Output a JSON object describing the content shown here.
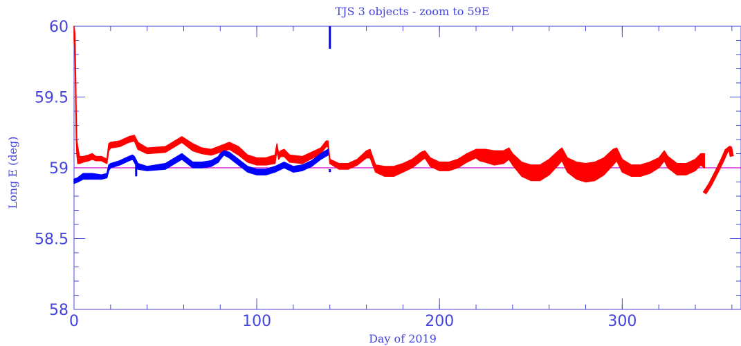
{
  "chart_data": {
    "type": "line",
    "title": "TJS 3 objects - zoom to 59E",
    "xlabel": "Day of 2019",
    "ylabel": "Long E (deg)",
    "xlim": [
      0,
      365
    ],
    "ylim": [
      58,
      60
    ],
    "x_ticks": [
      0,
      100,
      200,
      300
    ],
    "x_tick_labels": [
      "0",
      "100",
      "200",
      "300"
    ],
    "y_ticks": [
      58,
      58.5,
      59,
      59.5,
      60
    ],
    "y_tick_labels": [
      "58",
      "58.5",
      "59",
      "59.5",
      "60"
    ],
    "reference_line": {
      "y": 59.0,
      "color": "#d400d4"
    },
    "colors": {
      "axes": "#4444dd",
      "text": "#4444dd",
      "red_series": "#ff0000",
      "blue_series": "#0000ff"
    },
    "series": [
      {
        "color": "#ff0000",
        "style": "band",
        "x": [
          0,
          0.5,
          1,
          1.2,
          1.5,
          2,
          3,
          5,
          8,
          10,
          12,
          15,
          18,
          19,
          20,
          25,
          30,
          33,
          35,
          40,
          50,
          59,
          65,
          70,
          75,
          85,
          90,
          95,
          100,
          105,
          110,
          111,
          112,
          113,
          115,
          118,
          125,
          135,
          138,
          139,
          140,
          145,
          150,
          155,
          160,
          162,
          165,
          170,
          175,
          180,
          185,
          190,
          192,
          195,
          200,
          205,
          210,
          215,
          220,
          222,
          225,
          230,
          235,
          238,
          240,
          245,
          250,
          255,
          260,
          265,
          267,
          270,
          275,
          280,
          285,
          290,
          295,
          297,
          300,
          305,
          310,
          315,
          320,
          323,
          325,
          330,
          335,
          340,
          343,
          345
        ],
        "upper": [
          60.0,
          59.95,
          59.6,
          59.4,
          59.2,
          59.15,
          59.08,
          59.08,
          59.09,
          59.1,
          59.08,
          59.08,
          59.06,
          59.17,
          59.18,
          59.19,
          59.22,
          59.23,
          59.18,
          59.14,
          59.15,
          59.22,
          59.17,
          59.14,
          59.13,
          59.18,
          59.15,
          59.09,
          59.07,
          59.07,
          59.09,
          59.17,
          59.1,
          59.12,
          59.13,
          59.09,
          59.08,
          59.14,
          59.19,
          59.19,
          59.06,
          59.03,
          59.03,
          59.06,
          59.12,
          59.13,
          59.02,
          59.01,
          59.01,
          59.03,
          59.06,
          59.11,
          59.12,
          59.07,
          59.04,
          59.04,
          59.06,
          59.1,
          59.13,
          59.13,
          59.13,
          59.12,
          59.12,
          59.14,
          59.1,
          59.04,
          59.02,
          59.02,
          59.06,
          59.12,
          59.14,
          59.07,
          59.04,
          59.03,
          59.04,
          59.07,
          59.13,
          59.14,
          59.06,
          59.02,
          59.02,
          59.04,
          59.07,
          59.12,
          59.08,
          59.03,
          59.03,
          59.06,
          59.1,
          59.1
        ],
        "lower": [
          59.9,
          59.8,
          59.4,
          59.2,
          59.1,
          59.03,
          59.03,
          59.04,
          59.05,
          59.06,
          59.05,
          59.05,
          59.03,
          59.12,
          59.14,
          59.15,
          59.18,
          59.19,
          59.13,
          59.1,
          59.11,
          59.18,
          59.12,
          59.1,
          59.09,
          59.13,
          59.09,
          59.04,
          59.02,
          59.02,
          59.03,
          59.12,
          59.06,
          59.08,
          59.08,
          59.04,
          59.03,
          59.1,
          59.15,
          59.15,
          59.03,
          58.99,
          58.99,
          59.02,
          59.07,
          59.07,
          58.97,
          58.94,
          58.94,
          58.97,
          59.0,
          59.05,
          59.07,
          59.01,
          58.98,
          58.98,
          59.0,
          59.04,
          59.07,
          59.05,
          59.04,
          59.02,
          59.03,
          59.06,
          59.02,
          58.94,
          58.91,
          58.91,
          58.95,
          59.02,
          59.05,
          58.97,
          58.92,
          58.9,
          58.91,
          58.95,
          59.02,
          59.05,
          58.97,
          58.94,
          58.94,
          58.96,
          59.0,
          59.05,
          59.0,
          58.95,
          58.95,
          58.98,
          59.02,
          59.0
        ]
      },
      {
        "color": "#ff0000",
        "style": "line",
        "x": [
          345,
          348,
          352,
          355,
          357,
          359,
          360
        ],
        "y": [
          58.82,
          58.88,
          58.98,
          59.06,
          59.12,
          59.14,
          59.08
        ]
      },
      {
        "color": "#0000ff",
        "style": "band",
        "x": [
          0,
          2,
          5,
          10,
          15,
          18,
          19,
          20,
          25,
          30,
          32,
          33,
          35,
          40,
          50,
          59,
          65,
          70,
          75,
          79,
          80,
          82,
          85,
          90,
          95,
          100,
          105,
          110,
          115,
          120,
          125,
          130,
          135,
          139
        ],
        "upper": [
          58.92,
          58.93,
          58.96,
          58.96,
          58.95,
          58.96,
          59.02,
          59.03,
          59.05,
          59.08,
          59.09,
          59.08,
          59.03,
          59.01,
          59.03,
          59.1,
          59.04,
          59.04,
          59.05,
          59.08,
          59.1,
          59.12,
          59.11,
          59.06,
          59.01,
          58.99,
          58.99,
          59.01,
          59.04,
          59.01,
          59.02,
          59.05,
          59.1,
          59.13
        ],
        "lower": [
          58.89,
          58.9,
          58.92,
          58.92,
          58.92,
          58.93,
          58.98,
          59.0,
          59.02,
          59.05,
          59.06,
          59.04,
          58.99,
          58.98,
          58.99,
          59.06,
          59.0,
          59.0,
          59.01,
          59.04,
          59.06,
          59.09,
          59.07,
          59.02,
          58.97,
          58.95,
          58.95,
          58.97,
          59.0,
          58.97,
          58.98,
          59.01,
          59.06,
          59.09
        ]
      },
      {
        "color": "#0000ff",
        "style": "segment",
        "x": [
          140,
          140
        ],
        "y": [
          60.0,
          59.84
        ]
      },
      {
        "color": "#0000ff",
        "style": "segment",
        "x": [
          140,
          140
        ],
        "y": [
          58.97,
          58.99
        ]
      },
      {
        "color": "#0000ff",
        "style": "segment",
        "x": [
          34,
          34
        ],
        "y": [
          59.02,
          58.94
        ]
      }
    ]
  }
}
